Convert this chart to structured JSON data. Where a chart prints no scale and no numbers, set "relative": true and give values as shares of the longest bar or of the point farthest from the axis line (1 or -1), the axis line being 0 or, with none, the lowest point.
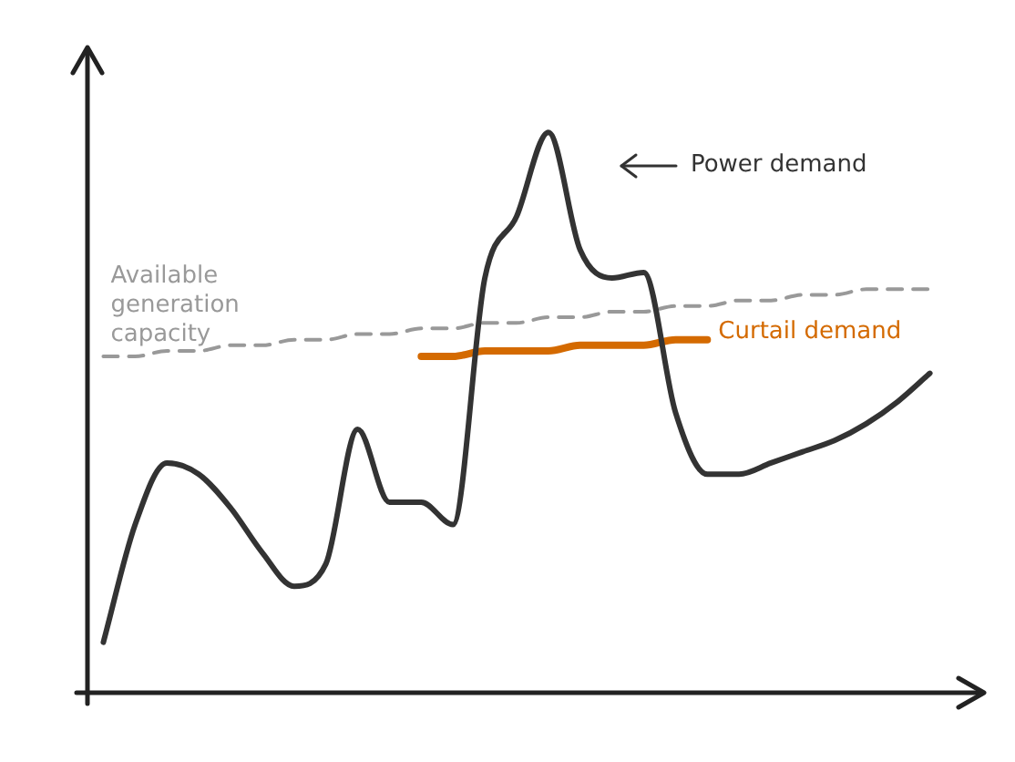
{
  "chart_data": {
    "type": "line",
    "relative": true,
    "marker": "none",
    "categories": [
      null,
      null,
      null,
      null,
      null,
      null,
      null,
      null,
      null,
      null,
      null,
      null,
      null,
      null,
      null,
      null,
      null,
      null,
      null,
      null,
      null,
      null,
      null,
      null,
      null,
      null,
      null
    ],
    "series": [
      {
        "name": "Power demand",
        "color": "#333333",
        "line_style": "solid",
        "values": [
          0.09,
          0.3,
          0.41,
          0.39,
          0.33,
          0.25,
          0.19,
          0.23,
          0.47,
          0.34,
          0.34,
          0.3,
          0.74,
          0.85,
          1,
          0.79,
          0.74,
          0.75,
          0.5,
          0.39,
          0.39,
          0.41,
          0.43,
          0.45,
          0.48,
          0.52,
          0.57
        ]
      },
      {
        "name": "Available generation capacity",
        "color": "#999999",
        "line_style": "dashed",
        "values": [
          0.6,
          0.6,
          0.61,
          0.61,
          0.62,
          0.62,
          0.63,
          0.63,
          0.64,
          0.64,
          0.65,
          0.65,
          0.66,
          0.66,
          0.67,
          0.67,
          0.68,
          0.68,
          0.69,
          0.69,
          0.7,
          0.7,
          0.71,
          0.71,
          0.72,
          0.72,
          0.72
        ]
      },
      {
        "name": "Curtail demand",
        "color": "#d46a00",
        "line_style": "solid",
        "values": [
          null,
          null,
          null,
          null,
          null,
          null,
          null,
          null,
          null,
          null,
          0.6,
          0.6,
          0.61,
          0.61,
          0.61,
          0.62,
          0.62,
          0.62,
          0.63,
          0.63,
          null,
          null,
          null,
          null,
          null,
          null,
          null
        ]
      }
    ]
  }
}
